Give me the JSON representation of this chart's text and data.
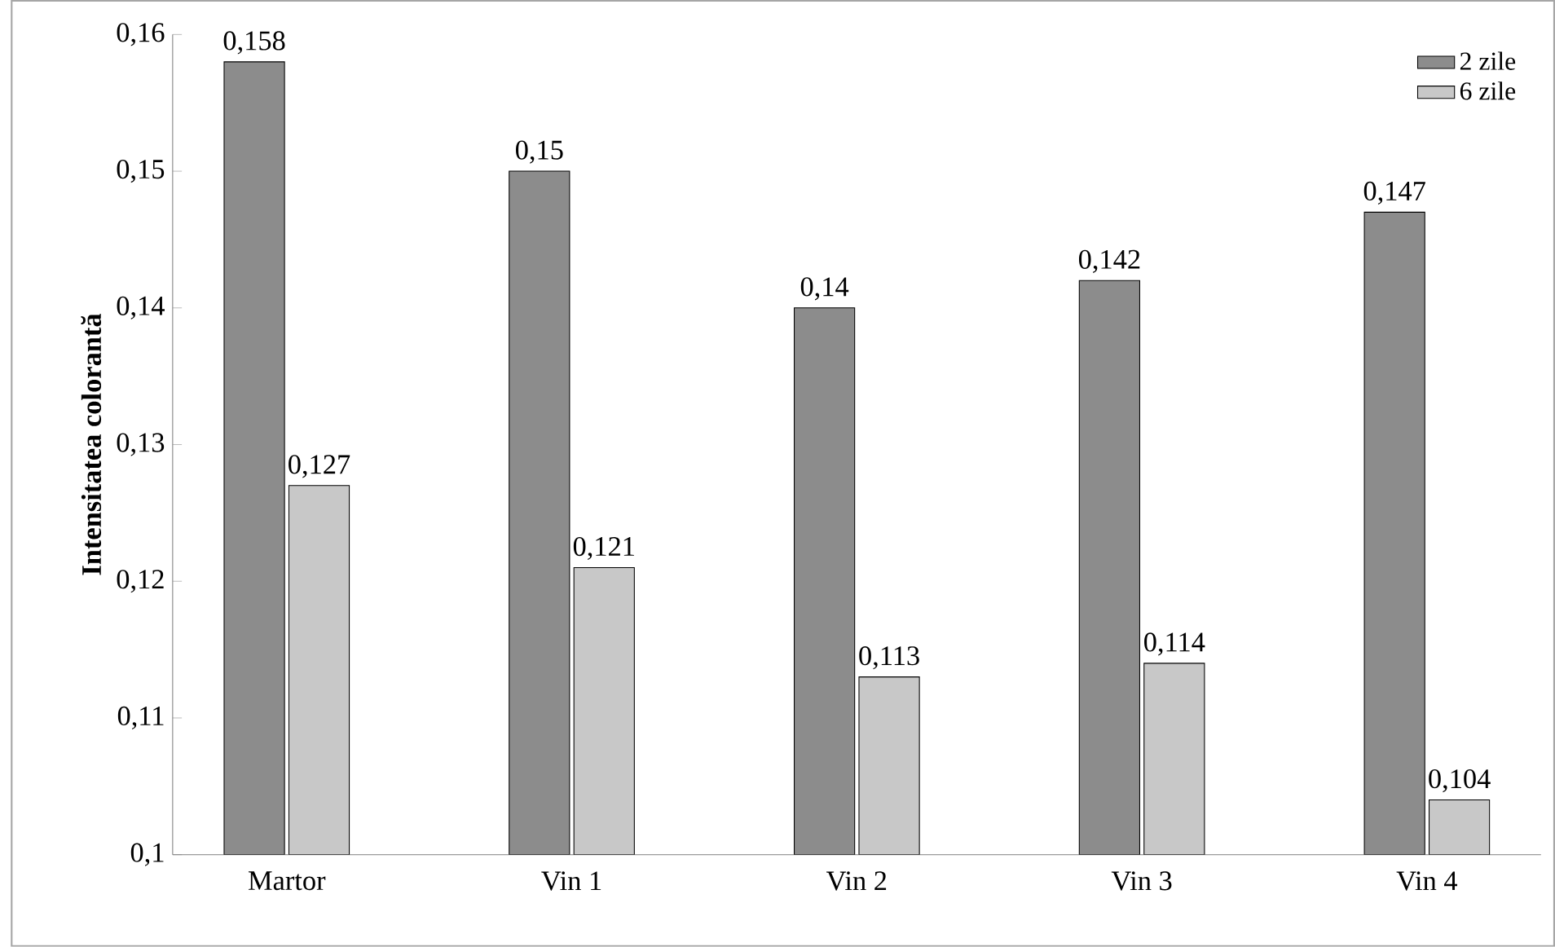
{
  "chart_data": {
    "type": "bar",
    "ylabel": "Intensitatea colorantă",
    "categories": [
      "Martor",
      "Vin 1",
      "Vin 2",
      "Vin 3",
      "Vin 4"
    ],
    "series": [
      {
        "name": "2 zile",
        "color": "#8c8c8c",
        "values": [
          0.158,
          0.15,
          0.14,
          0.142,
          0.147
        ],
        "value_labels": [
          "0,158",
          "0,15",
          "0,14",
          "0,142",
          "0,147"
        ]
      },
      {
        "name": "6 zile",
        "color": "#c8c8c8",
        "values": [
          0.127,
          0.121,
          0.113,
          0.114,
          0.104
        ],
        "value_labels": [
          "0,127",
          "0,121",
          "0,113",
          "0,114",
          "0,104"
        ]
      }
    ],
    "ylim": [
      0.1,
      0.16
    ],
    "yticks": [
      {
        "value": 0.1,
        "label": "0,1"
      },
      {
        "value": 0.11,
        "label": "0,11"
      },
      {
        "value": 0.12,
        "label": "0,12"
      },
      {
        "value": 0.13,
        "label": "0,13"
      },
      {
        "value": 0.14,
        "label": "0,14"
      },
      {
        "value": 0.15,
        "label": "0,15"
      },
      {
        "value": 0.16,
        "label": "0,16"
      }
    ],
    "grid": false,
    "legend": "top right"
  }
}
